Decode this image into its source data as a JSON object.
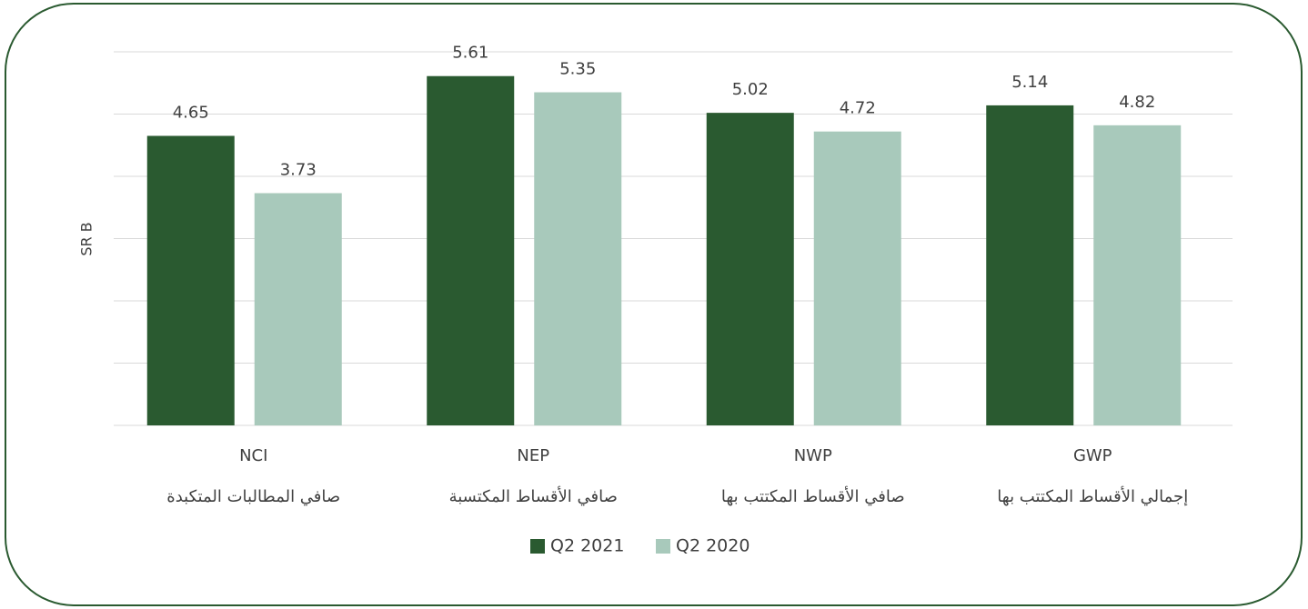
{
  "chart_data": {
    "type": "bar",
    "y_label": "SR B",
    "categories": [
      [
        "NCI",
        "صافي المطالبات المتكبدة"
      ],
      [
        "NEP",
        "صافي الأقساط المكتسبة"
      ],
      [
        "NWP",
        "صافي الأقساط المكتتب بها"
      ],
      [
        "GWP",
        "إجمالي الأقساط المكتتب بها"
      ]
    ],
    "series": [
      {
        "name": "Q2 2021",
        "color": "#2a5a30",
        "values": [
          4.65,
          5.61,
          5.02,
          5.14
        ]
      },
      {
        "name": "Q2 2020",
        "color": "#a8c9bb",
        "values": [
          3.73,
          5.35,
          4.72,
          4.82
        ]
      }
    ],
    "ylim": [
      0,
      6
    ],
    "yticks": [
      0,
      1,
      2,
      3,
      4,
      5,
      6
    ],
    "grid": true,
    "legend": "bottom"
  }
}
